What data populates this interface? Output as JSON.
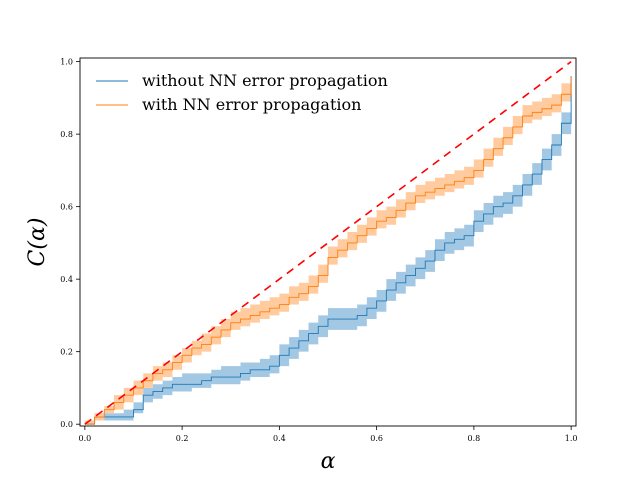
{
  "chart_data": {
    "type": "line",
    "title": "",
    "xlabel": "α",
    "ylabel": "C(α)",
    "xlim": [
      0.0,
      1.0
    ],
    "ylim": [
      0.0,
      1.0
    ],
    "xticks": [
      "0.0",
      "0.2",
      "0.4",
      "0.6",
      "0.8",
      "1.0"
    ],
    "yticks": [
      "0.0",
      "0.2",
      "0.4",
      "0.6",
      "0.8",
      "1.0"
    ],
    "grid": false,
    "legend_position": "top-left",
    "reference_line": {
      "name": "ideal",
      "color": "#ff0000",
      "style": "dashed",
      "x": [
        0.0,
        1.0
      ],
      "y": [
        0.0,
        1.0
      ]
    },
    "series": [
      {
        "name": "without NN error propagation",
        "color": "#1f77b4",
        "band_color": "#9ec5e3",
        "x": [
          0.0,
          0.02,
          0.04,
          0.06,
          0.08,
          0.1,
          0.12,
          0.14,
          0.16,
          0.18,
          0.2,
          0.22,
          0.24,
          0.26,
          0.28,
          0.3,
          0.32,
          0.34,
          0.36,
          0.38,
          0.4,
          0.42,
          0.44,
          0.46,
          0.48,
          0.5,
          0.52,
          0.54,
          0.56,
          0.58,
          0.6,
          0.62,
          0.64,
          0.66,
          0.68,
          0.7,
          0.72,
          0.74,
          0.76,
          0.78,
          0.8,
          0.82,
          0.84,
          0.86,
          0.88,
          0.9,
          0.92,
          0.94,
          0.96,
          0.98,
          1.0
        ],
        "values": [
          0.0,
          0.02,
          0.02,
          0.02,
          0.02,
          0.04,
          0.08,
          0.09,
          0.1,
          0.11,
          0.11,
          0.11,
          0.12,
          0.13,
          0.13,
          0.13,
          0.14,
          0.15,
          0.15,
          0.16,
          0.19,
          0.21,
          0.23,
          0.25,
          0.27,
          0.29,
          0.29,
          0.29,
          0.3,
          0.32,
          0.34,
          0.37,
          0.39,
          0.41,
          0.43,
          0.45,
          0.48,
          0.5,
          0.51,
          0.52,
          0.56,
          0.58,
          0.6,
          0.61,
          0.63,
          0.66,
          0.69,
          0.73,
          0.77,
          0.83,
          0.96
        ],
        "lower": [
          0.0,
          0.01,
          0.01,
          0.01,
          0.01,
          0.03,
          0.06,
          0.07,
          0.08,
          0.09,
          0.09,
          0.1,
          0.1,
          0.11,
          0.11,
          0.11,
          0.12,
          0.13,
          0.13,
          0.14,
          0.16,
          0.18,
          0.2,
          0.22,
          0.24,
          0.26,
          0.26,
          0.26,
          0.27,
          0.29,
          0.31,
          0.34,
          0.36,
          0.38,
          0.4,
          0.42,
          0.45,
          0.47,
          0.48,
          0.49,
          0.53,
          0.55,
          0.57,
          0.58,
          0.6,
          0.63,
          0.66,
          0.7,
          0.74,
          0.8,
          0.93
        ],
        "upper": [
          0.01,
          0.03,
          0.03,
          0.03,
          0.04,
          0.06,
          0.1,
          0.11,
          0.12,
          0.13,
          0.14,
          0.14,
          0.14,
          0.15,
          0.16,
          0.16,
          0.17,
          0.17,
          0.18,
          0.19,
          0.22,
          0.24,
          0.26,
          0.28,
          0.3,
          0.32,
          0.32,
          0.32,
          0.33,
          0.35,
          0.37,
          0.4,
          0.42,
          0.44,
          0.46,
          0.48,
          0.51,
          0.53,
          0.54,
          0.55,
          0.59,
          0.61,
          0.63,
          0.64,
          0.66,
          0.69,
          0.72,
          0.76,
          0.8,
          0.86,
          0.98
        ]
      },
      {
        "name": "with NN error propagation",
        "color": "#ff7f0e",
        "band_color": "#ffc89a",
        "x": [
          0.0,
          0.02,
          0.04,
          0.06,
          0.08,
          0.1,
          0.12,
          0.14,
          0.16,
          0.18,
          0.2,
          0.22,
          0.24,
          0.26,
          0.28,
          0.3,
          0.32,
          0.34,
          0.36,
          0.38,
          0.4,
          0.42,
          0.44,
          0.46,
          0.48,
          0.5,
          0.52,
          0.54,
          0.56,
          0.58,
          0.6,
          0.62,
          0.64,
          0.66,
          0.68,
          0.7,
          0.72,
          0.74,
          0.76,
          0.78,
          0.8,
          0.82,
          0.84,
          0.86,
          0.88,
          0.9,
          0.92,
          0.94,
          0.96,
          0.98,
          1.0
        ],
        "values": [
          0.0,
          0.02,
          0.04,
          0.06,
          0.08,
          0.1,
          0.12,
          0.14,
          0.15,
          0.17,
          0.19,
          0.21,
          0.22,
          0.24,
          0.26,
          0.28,
          0.29,
          0.3,
          0.31,
          0.32,
          0.33,
          0.35,
          0.36,
          0.38,
          0.41,
          0.46,
          0.48,
          0.5,
          0.52,
          0.54,
          0.56,
          0.57,
          0.59,
          0.61,
          0.63,
          0.64,
          0.65,
          0.66,
          0.67,
          0.68,
          0.7,
          0.73,
          0.76,
          0.79,
          0.82,
          0.85,
          0.86,
          0.87,
          0.88,
          0.91,
          0.96
        ],
        "lower": [
          0.0,
          0.01,
          0.03,
          0.04,
          0.06,
          0.08,
          0.1,
          0.12,
          0.13,
          0.15,
          0.17,
          0.19,
          0.2,
          0.22,
          0.24,
          0.26,
          0.27,
          0.28,
          0.29,
          0.3,
          0.31,
          0.33,
          0.34,
          0.36,
          0.39,
          0.44,
          0.46,
          0.48,
          0.5,
          0.52,
          0.54,
          0.55,
          0.57,
          0.59,
          0.61,
          0.62,
          0.63,
          0.64,
          0.65,
          0.66,
          0.68,
          0.71,
          0.74,
          0.77,
          0.8,
          0.83,
          0.84,
          0.85,
          0.86,
          0.89,
          0.94
        ],
        "upper": [
          0.01,
          0.03,
          0.05,
          0.08,
          0.1,
          0.12,
          0.14,
          0.16,
          0.17,
          0.19,
          0.21,
          0.23,
          0.25,
          0.27,
          0.29,
          0.31,
          0.32,
          0.33,
          0.34,
          0.35,
          0.36,
          0.38,
          0.39,
          0.41,
          0.44,
          0.49,
          0.51,
          0.53,
          0.55,
          0.57,
          0.59,
          0.6,
          0.62,
          0.64,
          0.66,
          0.67,
          0.68,
          0.69,
          0.7,
          0.71,
          0.73,
          0.76,
          0.79,
          0.82,
          0.85,
          0.88,
          0.89,
          0.9,
          0.91,
          0.94,
          0.99
        ]
      }
    ]
  }
}
